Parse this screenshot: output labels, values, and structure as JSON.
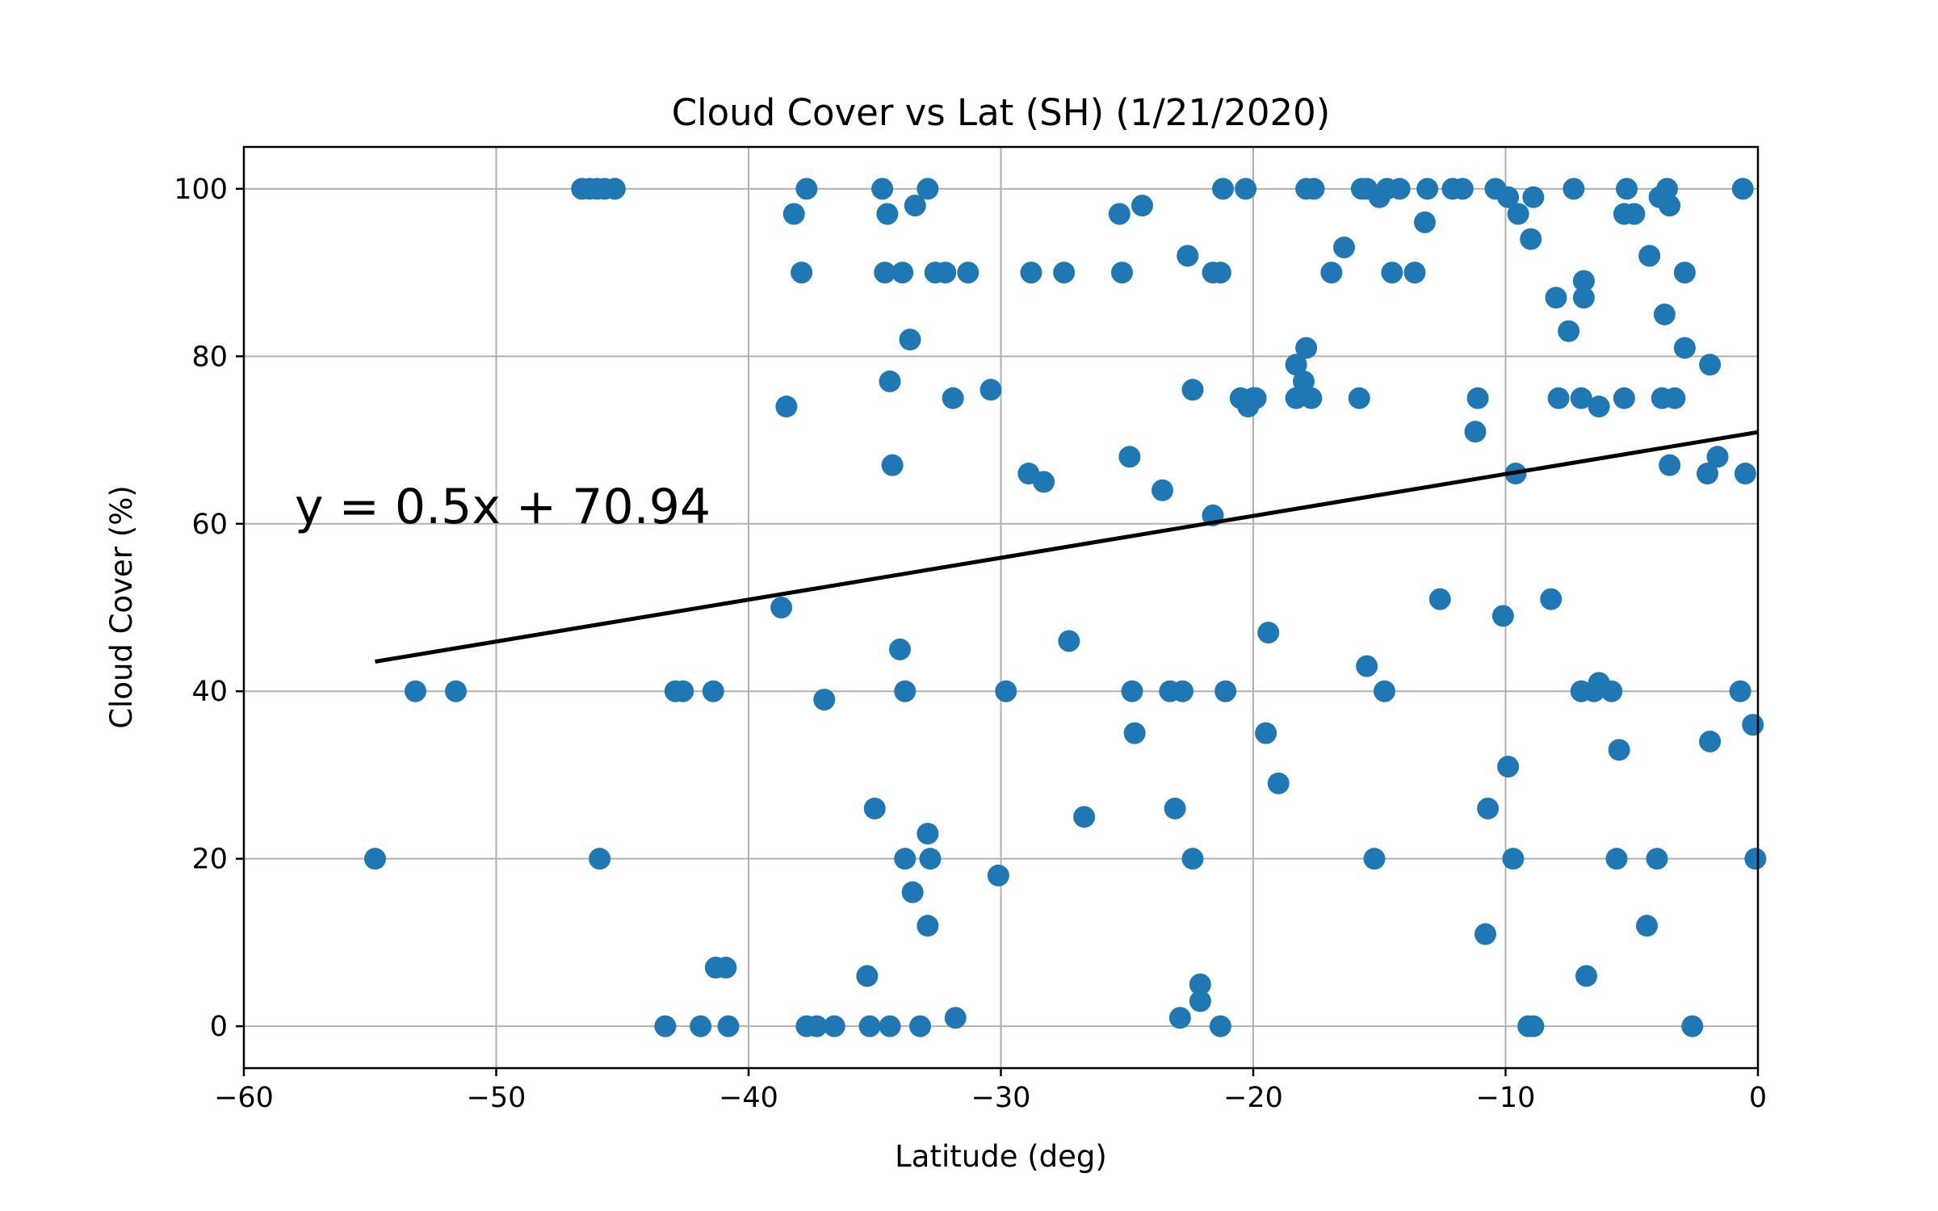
{
  "chart_data": {
    "type": "scatter",
    "title": "Cloud Cover vs Lat (SH) (1/21/2020)",
    "xlabel": "Latitude (deg)",
    "ylabel": "Cloud Cover (%)",
    "xlim": [
      -60,
      0
    ],
    "ylim": [
      -5,
      105
    ],
    "xticks": [
      -60,
      -50,
      -40,
      -30,
      -20,
      -10,
      0
    ],
    "xtick_labels": [
      "−60",
      "−50",
      "−40",
      "−30",
      "−20",
      "−10",
      "0"
    ],
    "yticks": [
      0,
      20,
      40,
      60,
      80,
      100
    ],
    "ytick_labels": [
      "0",
      "20",
      "40",
      "60",
      "80",
      "100"
    ],
    "grid": true,
    "marker_color": "#1f77b4",
    "regression": {
      "equation": "y = 0.5x + 70.94",
      "slope": 0.5,
      "intercept": 70.94,
      "x_range": [
        -54.8,
        0
      ],
      "color": "#000000"
    },
    "series": [
      {
        "points": [
          [
            -54.8,
            20
          ],
          [
            -53.2,
            40
          ],
          [
            -51.6,
            40
          ],
          [
            -46.6,
            100
          ],
          [
            -46.3,
            100
          ],
          [
            -46.0,
            100
          ],
          [
            -45.7,
            100
          ],
          [
            -45.3,
            100
          ],
          [
            -45.9,
            20
          ],
          [
            -43.3,
            0
          ],
          [
            -42.9,
            40
          ],
          [
            -42.6,
            40
          ],
          [
            -41.9,
            0
          ],
          [
            -41.4,
            40
          ],
          [
            -41.3,
            7
          ],
          [
            -40.9,
            7
          ],
          [
            -40.8,
            0
          ],
          [
            -38.7,
            50
          ],
          [
            -38.5,
            74
          ],
          [
            -38.2,
            97
          ],
          [
            -37.9,
            90
          ],
          [
            -37.7,
            100
          ],
          [
            -37.7,
            0
          ],
          [
            -37.3,
            0
          ],
          [
            -37.0,
            39
          ],
          [
            -36.6,
            0
          ],
          [
            -35.3,
            6
          ],
          [
            -35.2,
            0
          ],
          [
            -35.0,
            26
          ],
          [
            -34.7,
            100
          ],
          [
            -34.6,
            90
          ],
          [
            -34.5,
            97
          ],
          [
            -34.4,
            77
          ],
          [
            -34.3,
            67
          ],
          [
            -34.4,
            0
          ],
          [
            -34.0,
            45
          ],
          [
            -33.9,
            90
          ],
          [
            -33.8,
            40
          ],
          [
            -33.8,
            20
          ],
          [
            -33.6,
            82
          ],
          [
            -33.5,
            16
          ],
          [
            -33.4,
            98
          ],
          [
            -33.2,
            0
          ],
          [
            -32.9,
            100
          ],
          [
            -32.9,
            23
          ],
          [
            -32.9,
            12
          ],
          [
            -32.8,
            20
          ],
          [
            -32.6,
            90
          ],
          [
            -32.2,
            90
          ],
          [
            -31.9,
            75
          ],
          [
            -31.8,
            1
          ],
          [
            -31.3,
            90
          ],
          [
            -30.4,
            76
          ],
          [
            -30.1,
            18
          ],
          [
            -29.8,
            40
          ],
          [
            -28.9,
            66
          ],
          [
            -28.8,
            90
          ],
          [
            -28.3,
            65
          ],
          [
            -27.5,
            90
          ],
          [
            -27.3,
            46
          ],
          [
            -26.7,
            25
          ],
          [
            -25.3,
            97
          ],
          [
            -25.2,
            90
          ],
          [
            -24.9,
            68
          ],
          [
            -24.8,
            40
          ],
          [
            -24.7,
            35
          ],
          [
            -24.4,
            98
          ],
          [
            -23.6,
            64
          ],
          [
            -23.3,
            40
          ],
          [
            -23.1,
            26
          ],
          [
            -22.8,
            40
          ],
          [
            -22.9,
            1
          ],
          [
            -22.6,
            92
          ],
          [
            -22.4,
            76
          ],
          [
            -22.4,
            20
          ],
          [
            -22.1,
            5
          ],
          [
            -22.1,
            3
          ],
          [
            -21.6,
            90
          ],
          [
            -21.6,
            61
          ],
          [
            -21.3,
            90
          ],
          [
            -21.3,
            0
          ],
          [
            -21.2,
            100
          ],
          [
            -21.1,
            40
          ],
          [
            -20.5,
            75
          ],
          [
            -20.3,
            100
          ],
          [
            -20.2,
            74
          ],
          [
            -20.0,
            75
          ],
          [
            -19.9,
            75
          ],
          [
            -19.5,
            35
          ],
          [
            -19.4,
            47
          ],
          [
            -19.0,
            29
          ],
          [
            -18.3,
            79
          ],
          [
            -18.3,
            75
          ],
          [
            -18.0,
            77
          ],
          [
            -17.9,
            81
          ],
          [
            -17.9,
            100
          ],
          [
            -17.7,
            75
          ],
          [
            -17.6,
            100
          ],
          [
            -16.9,
            90
          ],
          [
            -16.4,
            93
          ],
          [
            -15.8,
            75
          ],
          [
            -15.7,
            100
          ],
          [
            -15.5,
            100
          ],
          [
            -15.5,
            43
          ],
          [
            -15.2,
            20
          ],
          [
            -15.0,
            99
          ],
          [
            -14.8,
            40
          ],
          [
            -14.7,
            100
          ],
          [
            -14.5,
            90
          ],
          [
            -14.2,
            100
          ],
          [
            -13.6,
            90
          ],
          [
            -13.2,
            96
          ],
          [
            -13.1,
            100
          ],
          [
            -12.6,
            51
          ],
          [
            -12.1,
            100
          ],
          [
            -11.7,
            100
          ],
          [
            -11.2,
            71
          ],
          [
            -11.1,
            75
          ],
          [
            -10.8,
            11
          ],
          [
            -10.7,
            26
          ],
          [
            -10.4,
            100
          ],
          [
            -10.1,
            49
          ],
          [
            -9.9,
            31
          ],
          [
            -9.9,
            99
          ],
          [
            -9.7,
            20
          ],
          [
            -9.6,
            66
          ],
          [
            -9.5,
            97
          ],
          [
            -9.1,
            0
          ],
          [
            -9.0,
            94
          ],
          [
            -8.9,
            99
          ],
          [
            -8.9,
            0
          ],
          [
            -8.2,
            51
          ],
          [
            -8.0,
            87
          ],
          [
            -7.9,
            75
          ],
          [
            -7.5,
            83
          ],
          [
            -7.3,
            100
          ],
          [
            -7.0,
            40
          ],
          [
            -7.0,
            75
          ],
          [
            -6.9,
            89
          ],
          [
            -6.9,
            87
          ],
          [
            -6.8,
            6
          ],
          [
            -6.5,
            40
          ],
          [
            -6.3,
            74
          ],
          [
            -6.3,
            41
          ],
          [
            -5.8,
            40
          ],
          [
            -5.6,
            20
          ],
          [
            -5.5,
            33
          ],
          [
            -5.3,
            75
          ],
          [
            -5.3,
            97
          ],
          [
            -5.2,
            100
          ],
          [
            -4.9,
            97
          ],
          [
            -4.4,
            12
          ],
          [
            -4.3,
            92
          ],
          [
            -4.0,
            20
          ],
          [
            -3.9,
            99
          ],
          [
            -3.8,
            75
          ],
          [
            -3.7,
            85
          ],
          [
            -3.6,
            100
          ],
          [
            -3.5,
            98
          ],
          [
            -3.5,
            67
          ],
          [
            -3.3,
            75
          ],
          [
            -2.9,
            90
          ],
          [
            -2.9,
            81
          ],
          [
            -2.6,
            0
          ],
          [
            -2.0,
            66
          ],
          [
            -1.9,
            79
          ],
          [
            -1.9,
            34
          ],
          [
            -1.6,
            68
          ],
          [
            -0.7,
            40
          ],
          [
            -0.6,
            100
          ],
          [
            -0.5,
            66
          ],
          [
            -0.2,
            36
          ],
          [
            -0.1,
            20
          ]
        ]
      }
    ]
  }
}
